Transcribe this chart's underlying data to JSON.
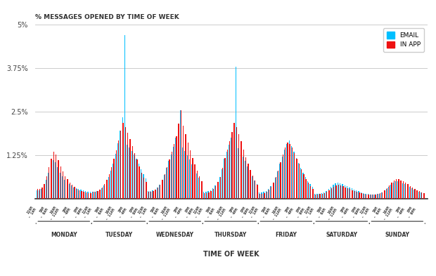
{
  "title": "% MESSAGES OPENED BY TIME OF WEEK",
  "xlabel": "TIME OF WEEK",
  "email_color": "#00BFFF",
  "inapp_color": "#EE1111",
  "bg_color": "#FFFFFF",
  "legend_email": "EMAIL",
  "legend_inapp": "IN APP",
  "ylim_max": 0.05,
  "yticks": [
    0.0,
    0.0125,
    0.025,
    0.0375,
    0.05
  ],
  "ytick_labels": [
    "",
    "1.25%",
    "2.5%",
    "3.75%",
    "5%"
  ],
  "days": [
    "MONDAY",
    "TUESDAY",
    "WEDNESDAY",
    "THURSDAY",
    "FRIDAY",
    "SATURDAY",
    "SUNDAY"
  ],
  "slots_per_day": 24,
  "tick_slot_labels": [
    "12AM\n- 1AM",
    "5AM\n- 6AM",
    "10AM\n- 11AM",
    "3PM\n- 4PM",
    "8PM\n- 9PM"
  ],
  "tick_slots": [
    0,
    5,
    10,
    15,
    20
  ],
  "email_data": [
    0.0025,
    0.0025,
    0.0028,
    0.0035,
    0.0055,
    0.0075,
    0.0095,
    0.011,
    0.0105,
    0.009,
    0.0075,
    0.0065,
    0.0055,
    0.005,
    0.0042,
    0.0038,
    0.0033,
    0.003,
    0.0028,
    0.0026,
    0.0024,
    0.0022,
    0.0021,
    0.002,
    0.002,
    0.002,
    0.0022,
    0.0025,
    0.003,
    0.0038,
    0.0048,
    0.0062,
    0.008,
    0.01,
    0.013,
    0.016,
    0.0195,
    0.0235,
    0.047,
    0.0155,
    0.0148,
    0.0138,
    0.0128,
    0.0115,
    0.01,
    0.0085,
    0.007,
    0.0058,
    0.0022,
    0.0022,
    0.0024,
    0.0027,
    0.0032,
    0.004,
    0.0052,
    0.0068,
    0.0088,
    0.0108,
    0.0128,
    0.015,
    0.0175,
    0.021,
    0.0255,
    0.0148,
    0.0138,
    0.0125,
    0.0112,
    0.0098,
    0.0085,
    0.0072,
    0.006,
    0.005,
    0.002,
    0.002,
    0.0022,
    0.0025,
    0.003,
    0.0038,
    0.0048,
    0.0062,
    0.0085,
    0.0115,
    0.0135,
    0.0155,
    0.0175,
    0.02,
    0.038,
    0.0145,
    0.0135,
    0.0122,
    0.0108,
    0.0092,
    0.0078,
    0.0065,
    0.0053,
    0.0043,
    0.0018,
    0.0018,
    0.002,
    0.0023,
    0.0028,
    0.0036,
    0.0046,
    0.006,
    0.0078,
    0.01,
    0.0122,
    0.0142,
    0.0158,
    0.0168,
    0.0152,
    0.0135,
    0.0118,
    0.0102,
    0.0088,
    0.0074,
    0.0062,
    0.0051,
    0.0042,
    0.0034,
    0.0014,
    0.0014,
    0.0015,
    0.0016,
    0.0018,
    0.0022,
    0.0028,
    0.0034,
    0.004,
    0.0044,
    0.0047,
    0.0045,
    0.0042,
    0.0039,
    0.0036,
    0.0033,
    0.003,
    0.0027,
    0.0024,
    0.0022,
    0.0019,
    0.0017,
    0.0015,
    0.0014,
    0.0012,
    0.0012,
    0.0013,
    0.0014,
    0.0015,
    0.0018,
    0.0022,
    0.0028,
    0.0034,
    0.004,
    0.0046,
    0.005,
    0.005,
    0.0048,
    0.0045,
    0.0042,
    0.0038,
    0.0034,
    0.003,
    0.0027,
    0.0024,
    0.0021,
    0.0018,
    0.0015
  ],
  "inapp_data": [
    0.0028,
    0.0028,
    0.0032,
    0.0042,
    0.0065,
    0.009,
    0.0115,
    0.0135,
    0.0128,
    0.011,
    0.0092,
    0.0078,
    0.0065,
    0.0056,
    0.0047,
    0.004,
    0.0034,
    0.0029,
    0.0025,
    0.0022,
    0.002,
    0.0018,
    0.0017,
    0.0016,
    0.002,
    0.002,
    0.0022,
    0.0026,
    0.0032,
    0.0042,
    0.0055,
    0.007,
    0.009,
    0.0115,
    0.014,
    0.0168,
    0.0195,
    0.0218,
    0.0205,
    0.019,
    0.0172,
    0.0152,
    0.0132,
    0.0112,
    0.0092,
    0.0075,
    0.006,
    0.0048,
    0.002,
    0.002,
    0.0022,
    0.0026,
    0.0032,
    0.004,
    0.0055,
    0.007,
    0.009,
    0.0112,
    0.0135,
    0.0158,
    0.018,
    0.0215,
    0.0255,
    0.021,
    0.0185,
    0.0162,
    0.014,
    0.0118,
    0.0098,
    0.008,
    0.0064,
    0.005,
    0.0016,
    0.0016,
    0.0018,
    0.0022,
    0.0028,
    0.0036,
    0.0048,
    0.0062,
    0.0088,
    0.0118,
    0.0142,
    0.0165,
    0.0192,
    0.0218,
    0.0205,
    0.0185,
    0.0165,
    0.0142,
    0.012,
    0.01,
    0.0082,
    0.0066,
    0.0052,
    0.004,
    0.0015,
    0.0015,
    0.0017,
    0.002,
    0.0026,
    0.0034,
    0.0046,
    0.0062,
    0.008,
    0.0105,
    0.0128,
    0.0148,
    0.0162,
    0.0158,
    0.0148,
    0.0132,
    0.0116,
    0.01,
    0.0085,
    0.007,
    0.0057,
    0.0046,
    0.0036,
    0.0028,
    0.0012,
    0.0013,
    0.0014,
    0.0015,
    0.0017,
    0.002,
    0.0025,
    0.003,
    0.0035,
    0.0038,
    0.004,
    0.0038,
    0.0036,
    0.0033,
    0.003,
    0.0028,
    0.0025,
    0.0022,
    0.002,
    0.0018,
    0.0016,
    0.0014,
    0.0013,
    0.0012,
    0.0012,
    0.0012,
    0.0013,
    0.0014,
    0.0016,
    0.0019,
    0.0024,
    0.003,
    0.0038,
    0.0046,
    0.0052,
    0.0056,
    0.0056,
    0.0053,
    0.005,
    0.0046,
    0.0042,
    0.0037,
    0.0033,
    0.0029,
    0.0025,
    0.0022,
    0.0019,
    0.0016
  ]
}
